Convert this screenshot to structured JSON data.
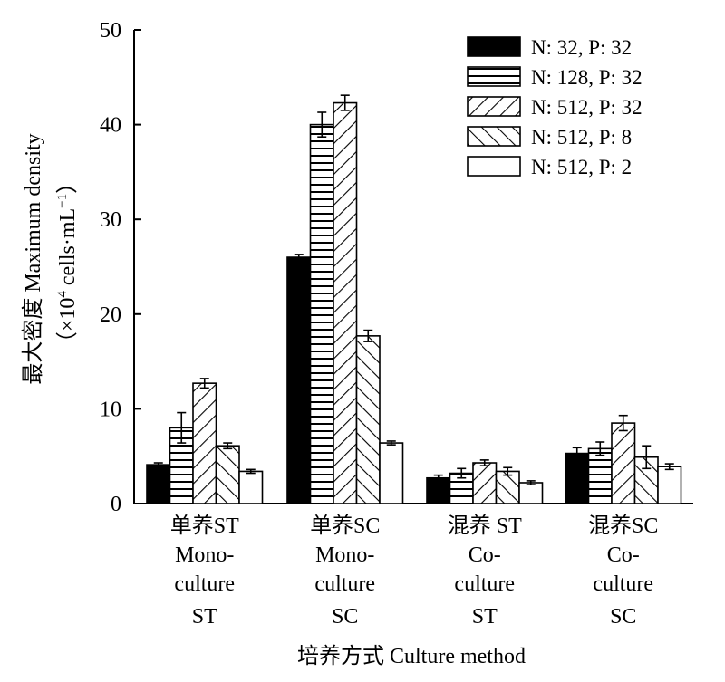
{
  "chart_data": {
    "type": "bar",
    "title": "",
    "ylabel_line1": "最大密度 Maximum density",
    "ylabel_line2_prefix": "（×10",
    "ylabel_line2_sup": "4",
    "ylabel_line2_mid": " cells·mL",
    "ylabel_line2_sup2": "−1",
    "ylabel_line2_suffix": "）",
    "xlabel": "培养方式 Culture method",
    "ylim": [
      0,
      50
    ],
    "yticks": [
      "0",
      "10",
      "20",
      "30",
      "40",
      "50"
    ],
    "categories": [
      [
        "单养ST",
        "Mono-",
        "culture",
        "ST"
      ],
      [
        "单养SC",
        "Mono-",
        "culture",
        "SC"
      ],
      [
        "混养 ST",
        "Co-",
        "culture",
        "ST"
      ],
      [
        "混养SC",
        "Co-",
        "culture",
        "SC"
      ]
    ],
    "legend_position": "top-right",
    "series": [
      {
        "name": "N: 32, P: 32",
        "pattern": "solid",
        "values": [
          4.1,
          26.0,
          2.7,
          5.3
        ],
        "errors": [
          0.2,
          0.3,
          0.3,
          0.6
        ]
      },
      {
        "name": "N: 128, P: 32",
        "pattern": "horizontal",
        "values": [
          8.0,
          40.0,
          3.2,
          5.8
        ],
        "errors": [
          1.6,
          1.3,
          0.5,
          0.7
        ]
      },
      {
        "name": "N: 512, P: 32",
        "pattern": "diag-up",
        "values": [
          12.7,
          42.3,
          4.3,
          8.5
        ],
        "errors": [
          0.5,
          0.8,
          0.3,
          0.8
        ]
      },
      {
        "name": "N: 512, P: 8",
        "pattern": "diag-down",
        "values": [
          6.1,
          17.7,
          3.4,
          4.9
        ],
        "errors": [
          0.3,
          0.6,
          0.4,
          1.2
        ]
      },
      {
        "name": "N: 512, P: 2",
        "pattern": "empty",
        "values": [
          3.4,
          6.4,
          2.2,
          3.9
        ],
        "errors": [
          0.2,
          0.2,
          0.2,
          0.3
        ]
      }
    ]
  }
}
